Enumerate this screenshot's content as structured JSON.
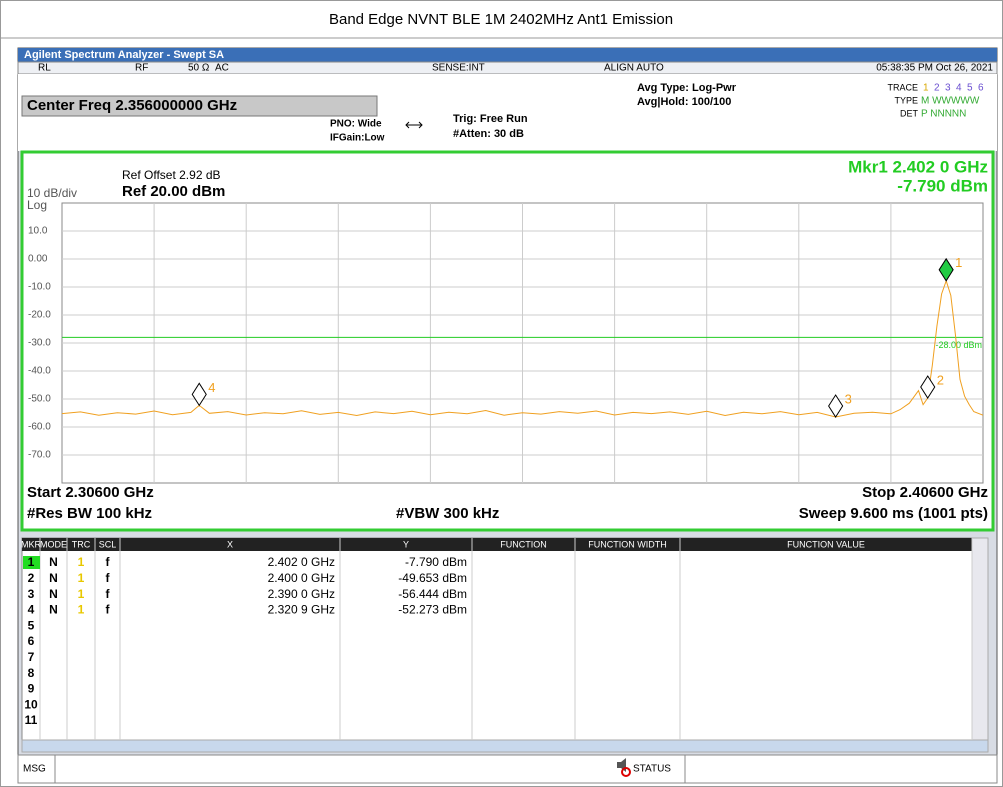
{
  "header": {
    "title": "Band Edge NVNT BLE 1M 2402MHz Ant1 Emission"
  },
  "window": {
    "title": "Agilent Spectrum Analyzer - Swept SA"
  },
  "status_bar": {
    "rl": "RL",
    "rf": "RF",
    "impedance": "50 Ω",
    "coupling": "AC",
    "sense": "SENSE:INT",
    "align": "ALIGN AUTO",
    "datetime": "05:38:35 PM Oct 26, 2021"
  },
  "settings": {
    "center_freq": "Center Freq 2.356000000 GHz",
    "pno": "PNO: Wide",
    "ifgain": "IFGain:Low",
    "trig": "Trig: Free Run",
    "atten": "#Atten: 30 dB",
    "avg_type": "Avg Type: Log-Pwr",
    "avg_hold": "Avg|Hold: 100/100",
    "trace_label": "TRACE",
    "trace_numbers": [
      "1",
      "2",
      "3",
      "4",
      "5",
      "6"
    ],
    "type_label": "TYPE",
    "type_values": "M WWWWW",
    "det_label": "DET",
    "det_values": "P NNNNN"
  },
  "chart_data": {
    "type": "line",
    "ref_offset": "Ref Offset 2.92 dB",
    "scale": "10 dB/div",
    "ref_level": "Ref 20.00 dBm",
    "scale_type": "Log",
    "marker_readout": [
      "Mkr1 2.402 0 GHz",
      "-7.790 dBm"
    ],
    "xlim": [
      2.306,
      2.406
    ],
    "ylim": [
      -80,
      20
    ],
    "yticks": [
      {
        "value": 10,
        "label": "10.0"
      },
      {
        "value": 0,
        "label": "0.00"
      },
      {
        "value": -10,
        "label": "-10.0"
      },
      {
        "value": -20,
        "label": "-20.0"
      },
      {
        "value": -30,
        "label": "-30.0"
      },
      {
        "value": -40,
        "label": "-40.0"
      },
      {
        "value": -50,
        "label": "-50.0"
      },
      {
        "value": -60,
        "label": "-60.0"
      },
      {
        "value": -70,
        "label": "-70.0"
      }
    ],
    "grid": true,
    "display_line": {
      "value": -28,
      "label": "-28.00 dBm",
      "color": "#22cc22"
    },
    "trace": {
      "color": "#f0a020",
      "x": [
        2.306,
        2.308,
        2.31,
        2.312,
        2.314,
        2.316,
        2.318,
        2.32,
        2.3209,
        2.322,
        2.324,
        2.326,
        2.328,
        2.33,
        2.332,
        2.334,
        2.336,
        2.338,
        2.34,
        2.342,
        2.344,
        2.346,
        2.348,
        2.35,
        2.352,
        2.354,
        2.356,
        2.358,
        2.36,
        2.362,
        2.364,
        2.366,
        2.368,
        2.37,
        2.372,
        2.374,
        2.376,
        2.378,
        2.38,
        2.382,
        2.384,
        2.386,
        2.388,
        2.39,
        2.392,
        2.394,
        2.396,
        2.397,
        2.398,
        2.399,
        2.3995,
        2.4,
        2.4005,
        2.401,
        2.4015,
        2.402,
        2.4025,
        2.403,
        2.4035,
        2.404,
        2.4045,
        2.405,
        2.406
      ],
      "values": [
        -55.2,
        -54.6,
        -55.8,
        -54.9,
        -55.4,
        -54.3,
        -55.6,
        -54.8,
        -52.273,
        -55.1,
        -54.5,
        -55.7,
        -54.9,
        -55.3,
        -54.2,
        -55.5,
        -54.8,
        -55.9,
        -54.6,
        -55.2,
        -54.4,
        -55.6,
        -54.7,
        -55.3,
        -54.1,
        -55.8,
        -54.9,
        -55.4,
        -54.5,
        -55.1,
        -54.3,
        -55.7,
        -54.8,
        -55.2,
        -54.6,
        -55.5,
        -54.4,
        -55.9,
        -54.7,
        -55.3,
        -54.5,
        -55.6,
        -54.8,
        -56.444,
        -55.1,
        -54.7,
        -55.3,
        -53.8,
        -51.5,
        -47,
        -52,
        -49.653,
        -38,
        -24,
        -12.5,
        -7.79,
        -13,
        -27,
        -43,
        -49,
        -52,
        -54.5,
        -55.8
      ]
    },
    "markers": [
      {
        "label": "1",
        "x": 2.402,
        "y": -7.79,
        "color": "#22cc44"
      },
      {
        "label": "2",
        "x": 2.4,
        "y": -49.653,
        "color": "#ffffff"
      },
      {
        "label": "3",
        "x": 2.39,
        "y": -56.444,
        "color": "#ffffff"
      },
      {
        "label": "4",
        "x": 2.3209,
        "y": -52.273,
        "color": "#ffffff"
      }
    ],
    "start": "Start 2.30600 GHz",
    "stop": "Stop 2.40600 GHz",
    "rbw": "#Res BW 100 kHz",
    "vbw": "#VBW 300 kHz",
    "sweep": "Sweep  9.600 ms (1001 pts)"
  },
  "marker_table": {
    "columns": [
      "MKR",
      "MODE",
      "TRC",
      "SCL",
      "X",
      "Y",
      "FUNCTION",
      "FUNCTION WIDTH",
      "FUNCTION VALUE"
    ],
    "rows": [
      [
        "1",
        "N",
        "1",
        "f",
        "2.402 0 GHz",
        "-7.790 dBm"
      ],
      [
        "2",
        "N",
        "1",
        "f",
        "2.400 0 GHz",
        "-49.653 dBm"
      ],
      [
        "3",
        "N",
        "1",
        "f",
        "2.390 0 GHz",
        "-56.444 dBm"
      ],
      [
        "4",
        "N",
        "1",
        "f",
        "2.320 9 GHz",
        "-52.273 dBm"
      ]
    ],
    "empty_rows": [
      "5",
      "6",
      "7",
      "8",
      "9",
      "10",
      "11"
    ]
  },
  "message_bar": {
    "msg": "MSG",
    "status": "STATUS"
  }
}
